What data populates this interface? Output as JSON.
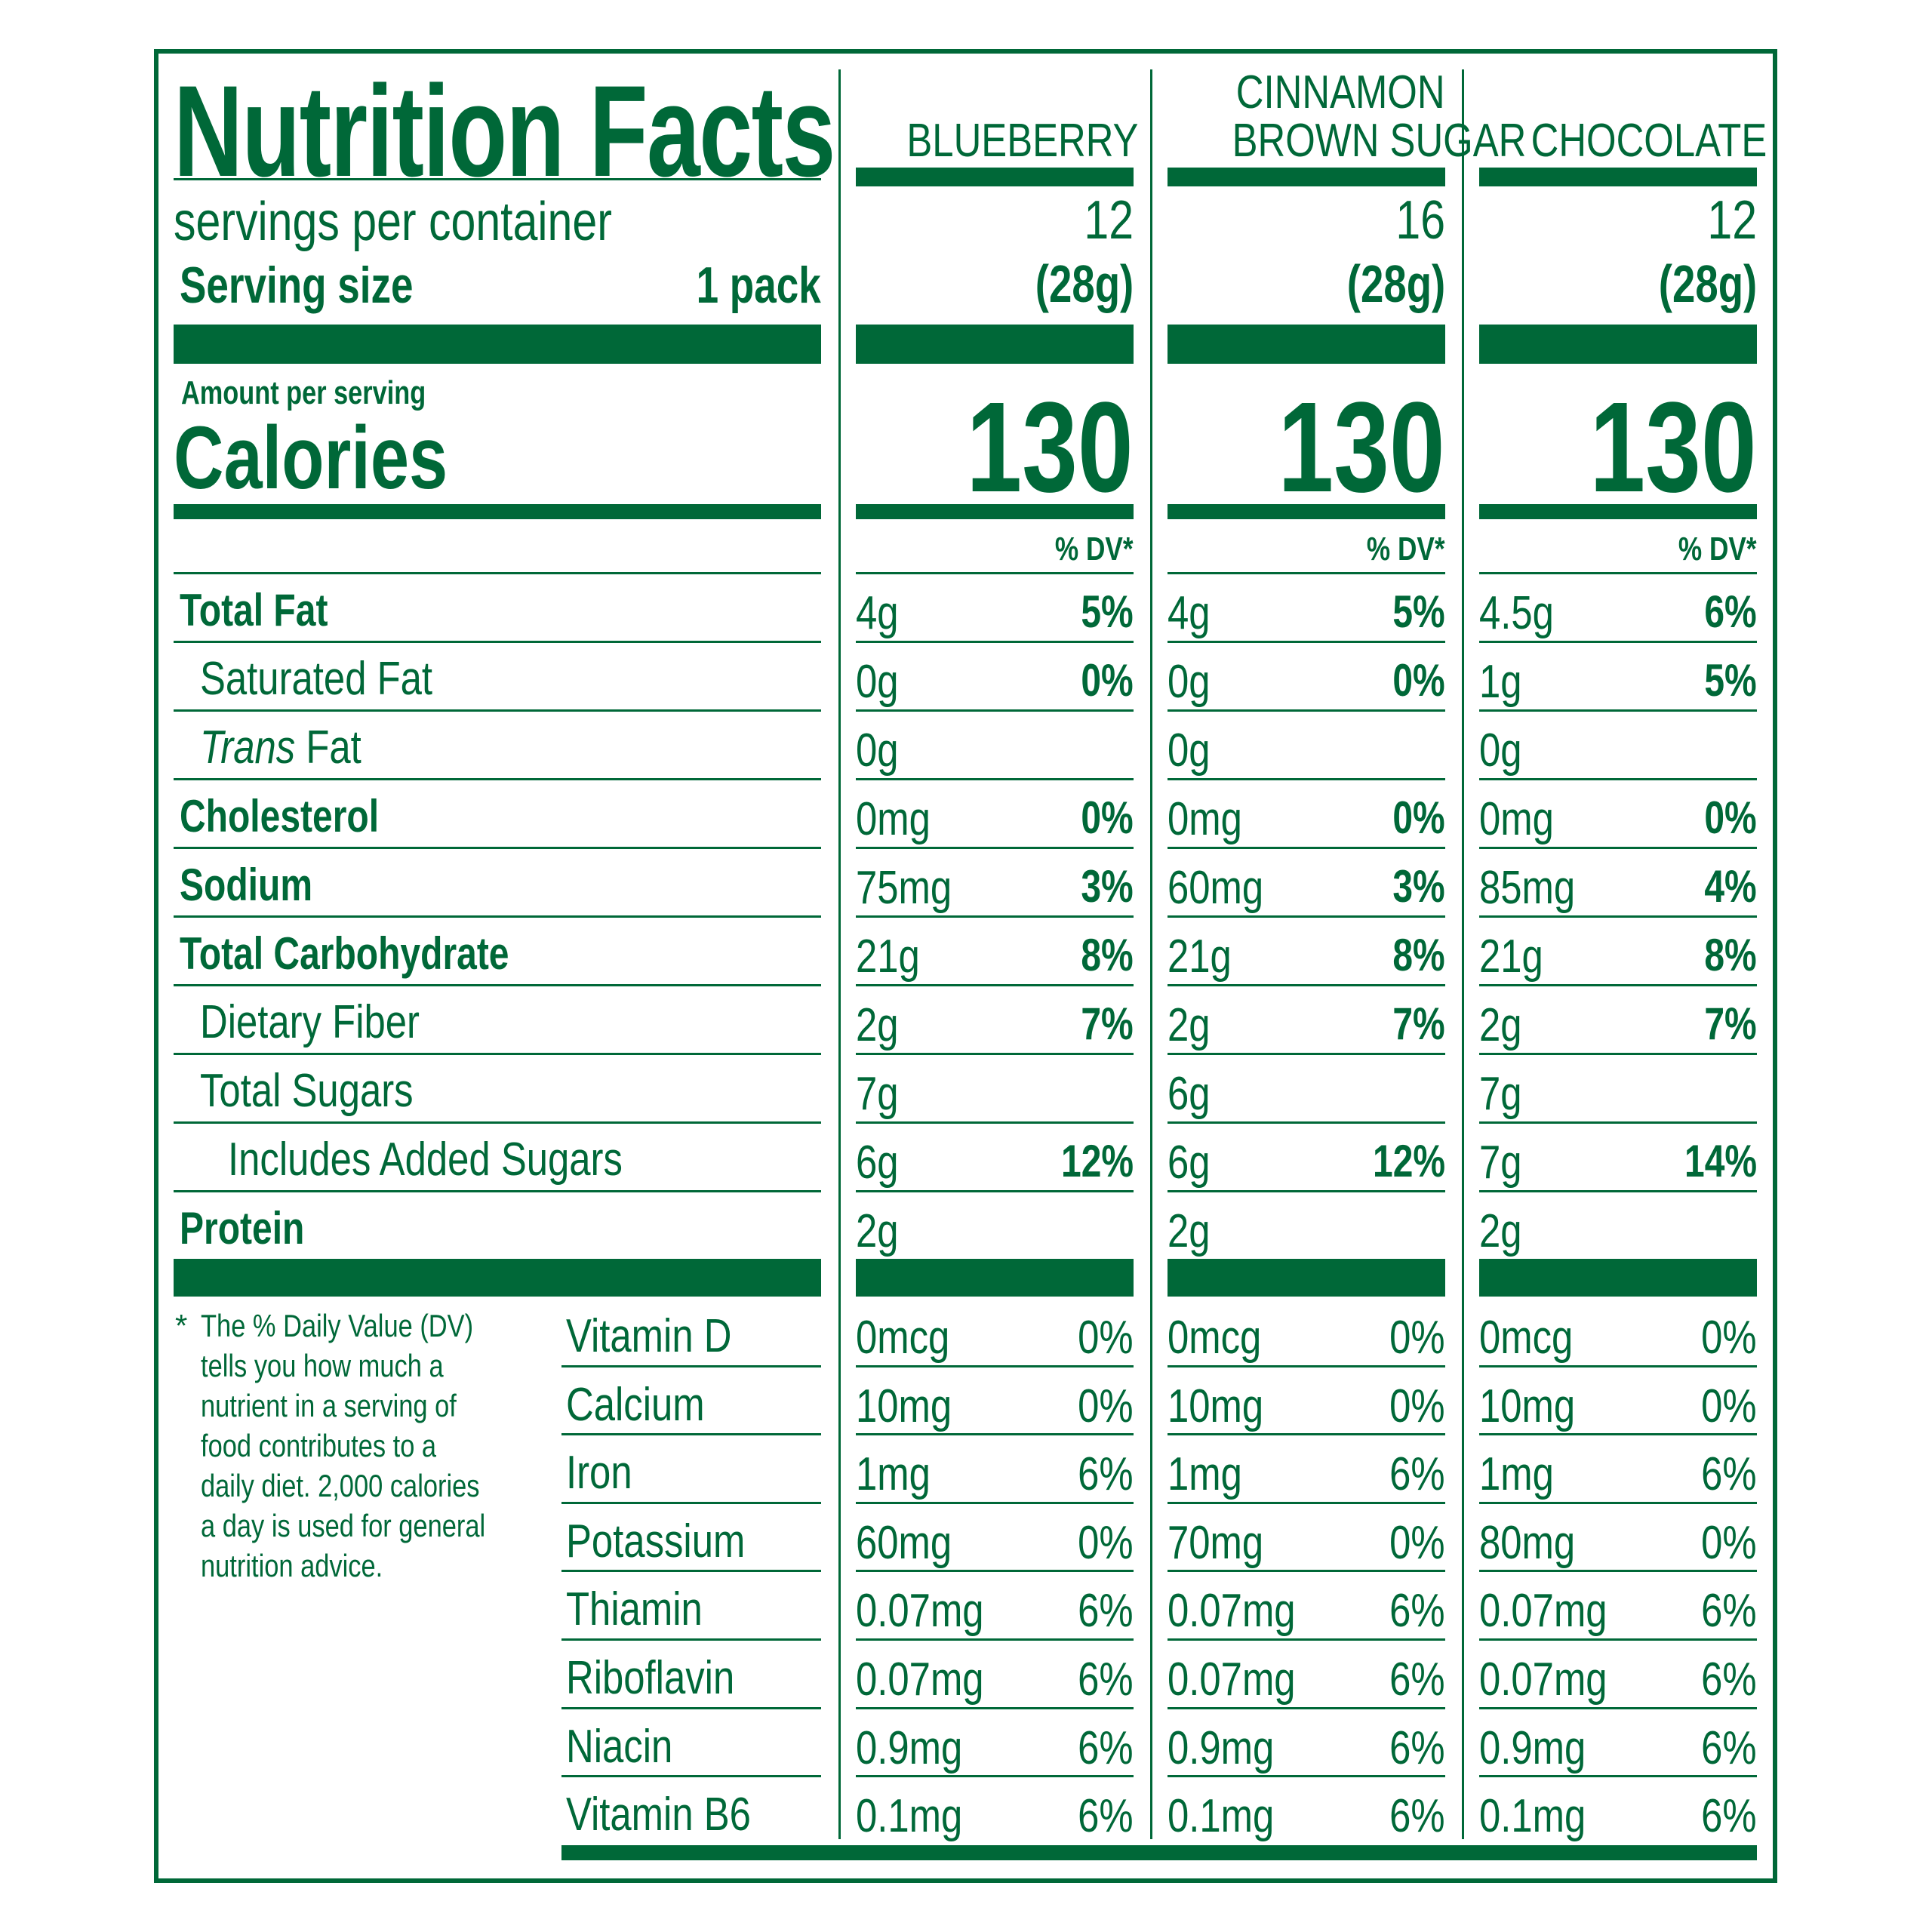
{
  "label": {
    "title": "Nutrition Facts",
    "servings_label": "servings per container",
    "serving_size_label": "Serving size",
    "serving_size_value": "1 pack",
    "amount_per_serving": "Amount per serving",
    "calories_label": "Calories",
    "dv_header": "% DV*",
    "footnote_star": "*",
    "footnote": "The % Daily Value (DV) tells you how much a nutrient in a serving of food contributes to a daily diet. 2,000 calories a day is used for general nutrition advice.",
    "footnote_lines": [
      "The % Daily Value (DV)",
      "tells you how much a",
      "nutrient in a serving of",
      "food contributes to a",
      "daily diet. 2,000 calories",
      "a day is used for general",
      "nutrition advice."
    ]
  },
  "colors": {
    "brand_green": "#006838",
    "background": "#ffffff"
  },
  "flavors": [
    {
      "name_line1": "",
      "name_line2": "BLUEBERRY",
      "servings": "12",
      "serving_size": "(28g)",
      "calories": "130"
    },
    {
      "name_line1": "CINNAMON",
      "name_line2": "BROWN SUGAR",
      "servings": "16",
      "serving_size": "(28g)",
      "calories": "130"
    },
    {
      "name_line1": "",
      "name_line2": "CHOCOLATE",
      "servings": "12",
      "serving_size": "(28g)",
      "calories": "130"
    }
  ],
  "nutrients": [
    {
      "label": "Total Fat",
      "style": "bold",
      "values": [
        [
          "4g",
          "5%"
        ],
        [
          "4g",
          "5%"
        ],
        [
          "4.5g",
          "6%"
        ]
      ]
    },
    {
      "label": "Saturated Fat",
      "style": "indent",
      "values": [
        [
          "0g",
          "0%"
        ],
        [
          "0g",
          "0%"
        ],
        [
          "1g",
          "5%"
        ]
      ]
    },
    {
      "label_italic": "Trans",
      "label": " Fat",
      "style": "indent",
      "values": [
        [
          "0g",
          ""
        ],
        [
          "0g",
          ""
        ],
        [
          "0g",
          ""
        ]
      ]
    },
    {
      "label": "Cholesterol",
      "style": "bold",
      "values": [
        [
          "0mg",
          "0%"
        ],
        [
          "0mg",
          "0%"
        ],
        [
          "0mg",
          "0%"
        ]
      ]
    },
    {
      "label": "Sodium",
      "style": "bold",
      "values": [
        [
          "75mg",
          "3%"
        ],
        [
          "60mg",
          "3%"
        ],
        [
          "85mg",
          "4%"
        ]
      ]
    },
    {
      "label": "Total Carbohydrate",
      "style": "bold",
      "values": [
        [
          "21g",
          "8%"
        ],
        [
          "21g",
          "8%"
        ],
        [
          "21g",
          "8%"
        ]
      ]
    },
    {
      "label": "Dietary Fiber",
      "style": "indent",
      "values": [
        [
          "2g",
          "7%"
        ],
        [
          "2g",
          "7%"
        ],
        [
          "2g",
          "7%"
        ]
      ]
    },
    {
      "label": "Total Sugars",
      "style": "indent",
      "values": [
        [
          "7g",
          ""
        ],
        [
          "6g",
          ""
        ],
        [
          "7g",
          ""
        ]
      ]
    },
    {
      "label": "Includes Added Sugars",
      "style": "indent2",
      "values": [
        [
          "6g",
          "12%"
        ],
        [
          "6g",
          "12%"
        ],
        [
          "7g",
          "14%"
        ]
      ]
    },
    {
      "label": "Protein",
      "style": "bold",
      "values": [
        [
          "2g",
          ""
        ],
        [
          "2g",
          ""
        ],
        [
          "2g",
          ""
        ]
      ]
    }
  ],
  "vitamins": [
    {
      "label": "Vitamin D",
      "values": [
        [
          "0mcg",
          "0%"
        ],
        [
          "0mcg",
          "0%"
        ],
        [
          "0mcg",
          "0%"
        ]
      ]
    },
    {
      "label": "Calcium",
      "values": [
        [
          "10mg",
          "0%"
        ],
        [
          "10mg",
          "0%"
        ],
        [
          "10mg",
          "0%"
        ]
      ]
    },
    {
      "label": "Iron",
      "values": [
        [
          "1mg",
          "6%"
        ],
        [
          "1mg",
          "6%"
        ],
        [
          "1mg",
          "6%"
        ]
      ]
    },
    {
      "label": "Potassium",
      "values": [
        [
          "60mg",
          "0%"
        ],
        [
          "70mg",
          "0%"
        ],
        [
          "80mg",
          "0%"
        ]
      ]
    },
    {
      "label": "Thiamin",
      "values": [
        [
          "0.07mg",
          "6%"
        ],
        [
          "0.07mg",
          "6%"
        ],
        [
          "0.07mg",
          "6%"
        ]
      ]
    },
    {
      "label": "Riboflavin",
      "values": [
        [
          "0.07mg",
          "6%"
        ],
        [
          "0.07mg",
          "6%"
        ],
        [
          "0.07mg",
          "6%"
        ]
      ]
    },
    {
      "label": "Niacin",
      "values": [
        [
          "0.9mg",
          "6%"
        ],
        [
          "0.9mg",
          "6%"
        ],
        [
          "0.9mg",
          "6%"
        ]
      ]
    },
    {
      "label": "Vitamin B6",
      "values": [
        [
          "0.1mg",
          "6%"
        ],
        [
          "0.1mg",
          "6%"
        ],
        [
          "0.1mg",
          "6%"
        ]
      ]
    }
  ]
}
